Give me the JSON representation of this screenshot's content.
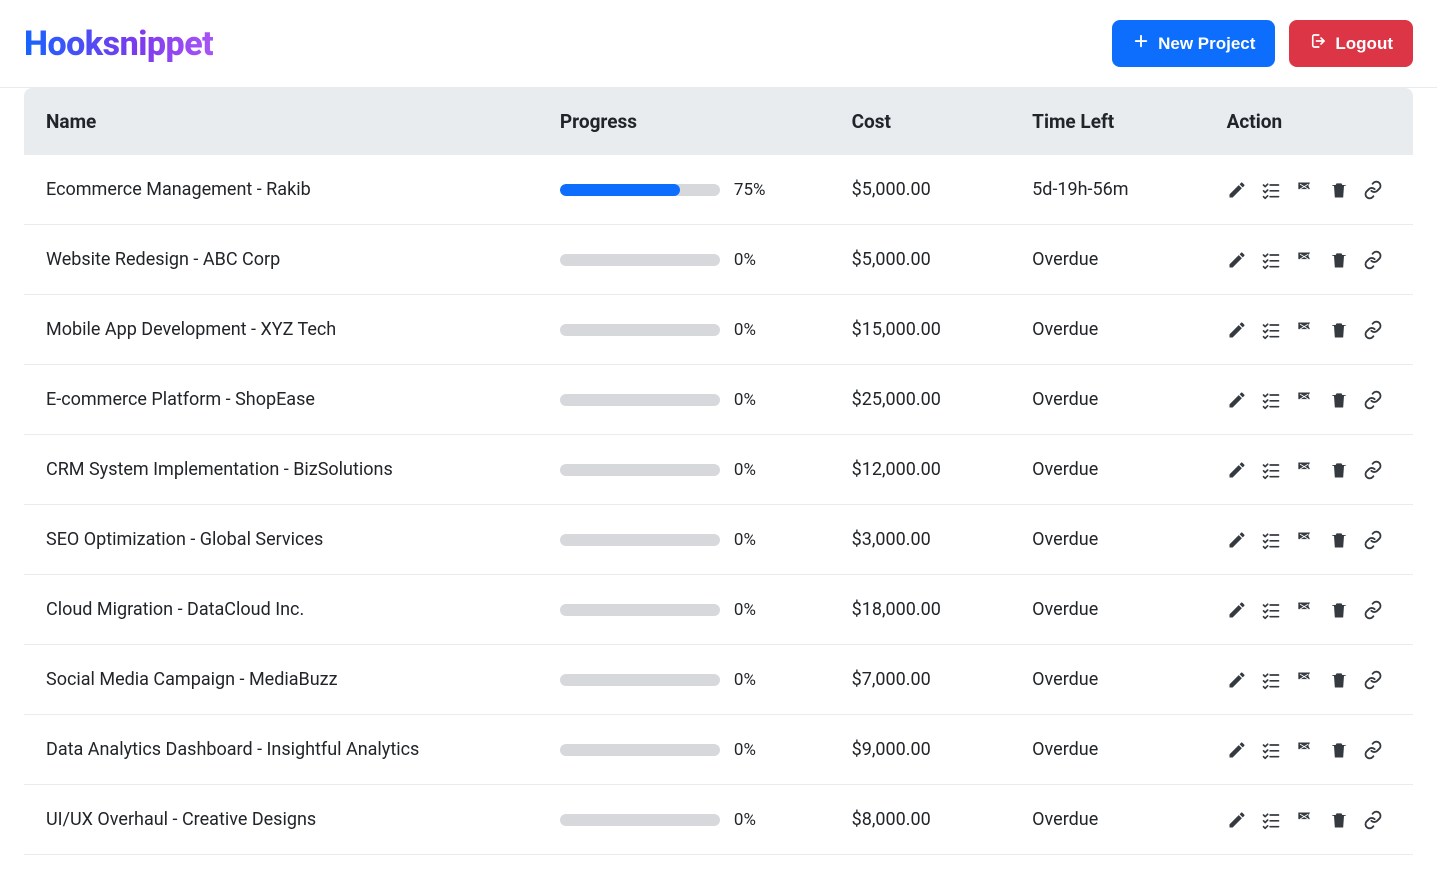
{
  "brand": "Hooksnippet",
  "header": {
    "new_project_label": "New Project",
    "logout_label": "Logout"
  },
  "colors": {
    "primary": "#0d6efd",
    "danger": "#dc3545",
    "header_bg": "#e9ecef",
    "progress_track": "#d6d8db",
    "progress_fill": "#0d6efd",
    "text": "#212529",
    "row_border": "#e9ecef",
    "action_icon": "#343a40",
    "logo_gradient_start": "#1664ff",
    "logo_gradient_mid": "#7c3aed",
    "logo_gradient_end": "#a855f7"
  },
  "table": {
    "columns": {
      "name": "Name",
      "progress": "Progress",
      "cost": "Cost",
      "time_left": "Time Left",
      "action": "Action"
    },
    "rows": [
      {
        "name": "Ecommerce Management - Rakib",
        "progress_pct": 75,
        "progress_label": "75%",
        "cost": "$5,000.00",
        "time_left": "5d-19h-56m"
      },
      {
        "name": "Website Redesign - ABC Corp",
        "progress_pct": 0,
        "progress_label": "0%",
        "cost": "$5,000.00",
        "time_left": "Overdue"
      },
      {
        "name": "Mobile App Development - XYZ Tech",
        "progress_pct": 0,
        "progress_label": "0%",
        "cost": "$15,000.00",
        "time_left": "Overdue"
      },
      {
        "name": "E-commerce Platform - ShopEase",
        "progress_pct": 0,
        "progress_label": "0%",
        "cost": "$25,000.00",
        "time_left": "Overdue"
      },
      {
        "name": "CRM System Implementation - BizSolutions",
        "progress_pct": 0,
        "progress_label": "0%",
        "cost": "$12,000.00",
        "time_left": "Overdue"
      },
      {
        "name": "SEO Optimization - Global Services",
        "progress_pct": 0,
        "progress_label": "0%",
        "cost": "$3,000.00",
        "time_left": "Overdue"
      },
      {
        "name": "Cloud Migration - DataCloud Inc.",
        "progress_pct": 0,
        "progress_label": "0%",
        "cost": "$18,000.00",
        "time_left": "Overdue"
      },
      {
        "name": "Social Media Campaign - MediaBuzz",
        "progress_pct": 0,
        "progress_label": "0%",
        "cost": "$7,000.00",
        "time_left": "Overdue"
      },
      {
        "name": "Data Analytics Dashboard - Insightful Analytics",
        "progress_pct": 0,
        "progress_label": "0%",
        "cost": "$9,000.00",
        "time_left": "Overdue"
      },
      {
        "name": "UI/UX Overhaul - Creative Designs",
        "progress_pct": 0,
        "progress_label": "0%",
        "cost": "$8,000.00",
        "time_left": "Overdue"
      }
    ]
  },
  "action_icons": [
    "edit-icon",
    "tasks-icon",
    "flag-icon",
    "trash-icon",
    "link-icon"
  ]
}
